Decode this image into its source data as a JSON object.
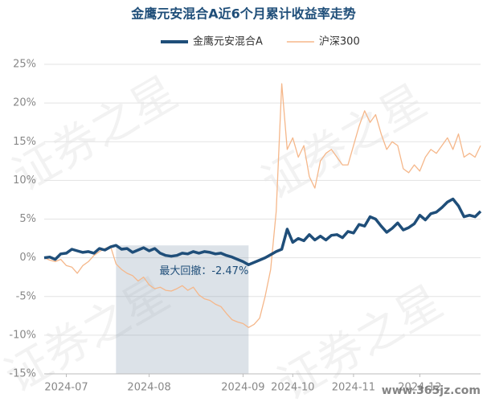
{
  "chart_data": {
    "type": "line",
    "title": "金鹰元安混合A近6个月累计收益率走势",
    "categories": [
      null,
      null,
      null,
      null,
      "2024-07",
      null,
      null,
      null,
      null,
      null,
      null,
      null,
      null,
      null,
      null,
      null,
      null,
      null,
      null,
      "2024-08",
      null,
      null,
      null,
      null,
      null,
      null,
      null,
      null,
      null,
      null,
      null,
      null,
      null,
      null,
      null,
      null,
      "2024-09",
      null,
      null,
      null,
      null,
      null,
      null,
      null,
      null,
      "2024-10",
      null,
      null,
      null,
      null,
      null,
      null,
      null,
      null,
      null,
      null,
      "2024-11",
      null,
      null,
      null,
      null,
      null,
      null,
      null,
      null,
      null,
      null,
      null,
      "2024-12",
      null,
      null,
      null,
      null,
      null,
      null,
      null,
      null,
      null,
      null,
      null
    ],
    "series": [
      {
        "name": "金鹰元安混合A",
        "color": "#1f4e79",
        "values": [
          0,
          0.1,
          -0.2,
          0.5,
          0.6,
          1.1,
          0.9,
          0.7,
          0.8,
          0.6,
          1.2,
          1.0,
          1.4,
          1.6,
          1.1,
          1.2,
          0.7,
          1.0,
          1.3,
          0.9,
          1.2,
          0.6,
          0.3,
          0.2,
          0.3,
          0.6,
          0.5,
          0.8,
          0.6,
          0.8,
          0.7,
          0.5,
          0.6,
          0.3,
          0.1,
          -0.2,
          -0.5,
          -0.9,
          -0.6,
          -0.3,
          0,
          0.4,
          0.8,
          1.1,
          3.7,
          2.0,
          2.5,
          2.2,
          3.0,
          2.3,
          2.8,
          2.3,
          2.9,
          3.0,
          2.6,
          3.4,
          3.2,
          4.3,
          4.1,
          5.3,
          5.0,
          4.1,
          3.3,
          3.8,
          4.5,
          3.6,
          3.9,
          4.4,
          5.5,
          4.9,
          5.7,
          5.9,
          6.5,
          7.2,
          7.6,
          6.7,
          5.3,
          5.5,
          5.3,
          6.0
        ]
      },
      {
        "name": "沪深300",
        "color": "#f5b78a",
        "values": [
          0,
          -0.3,
          -0.5,
          -0.2,
          -1.0,
          -1.2,
          -2.0,
          -1.0,
          -0.5,
          0.3,
          0.8,
          1.2,
          1.5,
          -0.8,
          -1.5,
          -2.0,
          -2.3,
          -3.0,
          -2.5,
          -3.5,
          -4.0,
          -3.8,
          -4.2,
          -4.3,
          -4.0,
          -3.6,
          -4.2,
          -3.8,
          -4.8,
          -5.3,
          -5.5,
          -6.0,
          -6.3,
          -7.2,
          -8.0,
          -8.3,
          -8.5,
          -9.0,
          -8.6,
          -7.8,
          -5.0,
          -1.5,
          6.0,
          22.5,
          14.0,
          15.5,
          13.0,
          14.5,
          10.5,
          9.0,
          12.5,
          13.5,
          14.0,
          13.0,
          12.0,
          12.0,
          14.5,
          17.0,
          19.0,
          17.5,
          18.5,
          16.0,
          14.0,
          15.0,
          14.5,
          11.5,
          11.0,
          12.0,
          11.2,
          13.0,
          14.0,
          13.5,
          14.5,
          15.5,
          14.0,
          16.0,
          13.0,
          13.5,
          13.0,
          14.5
        ]
      }
    ],
    "ylim": [
      -15,
      25
    ],
    "yticks": [
      {
        "value": -15,
        "label": "-15%"
      },
      {
        "value": -10,
        "label": "-10%"
      },
      {
        "value": -5,
        "label": "-5%"
      },
      {
        "value": 0,
        "label": "0%"
      },
      {
        "value": 5,
        "label": "5%"
      },
      {
        "value": 10,
        "label": "10%"
      },
      {
        "value": 15,
        "label": "15%"
      },
      {
        "value": 20,
        "label": "20%"
      },
      {
        "value": 25,
        "label": "25%"
      }
    ],
    "grid": true,
    "legend": "top",
    "annotation": "最大回撤：-2.47%",
    "watermark": "证券之星",
    "source_mark": "www.365jz.com"
  }
}
